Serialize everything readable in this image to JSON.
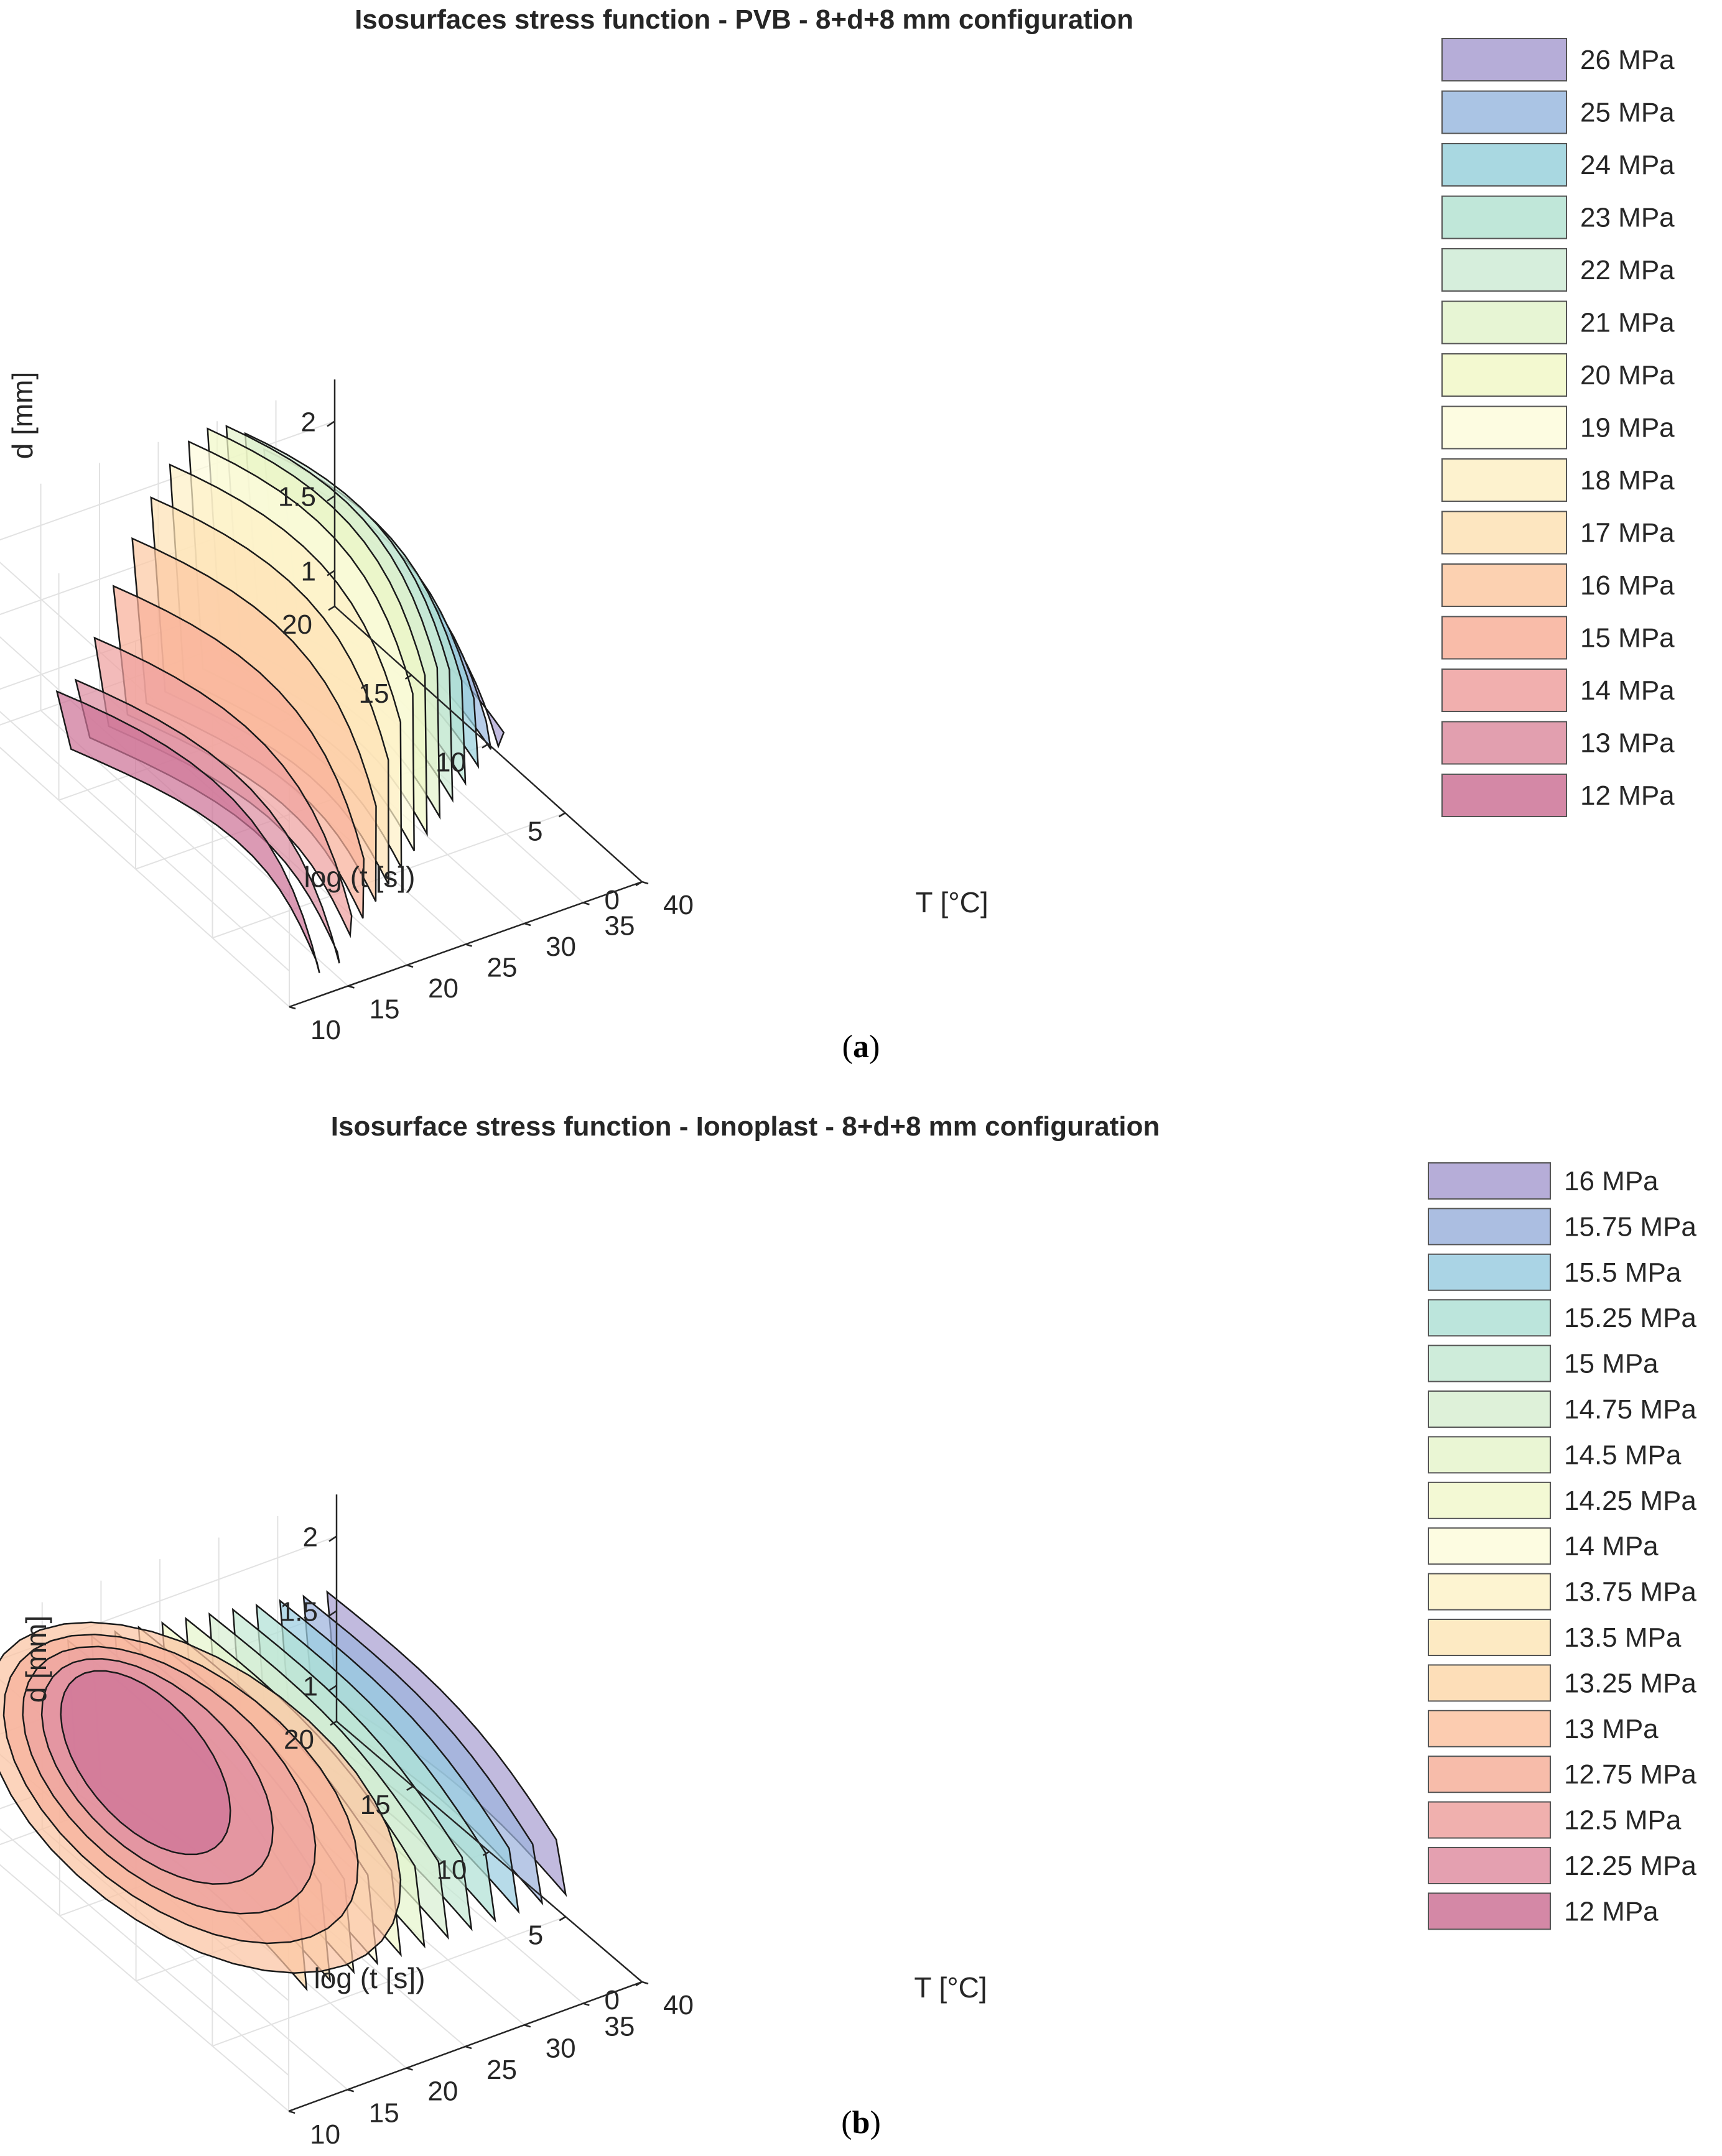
{
  "chart_data": [
    {
      "id": "a",
      "type": "isosurface-3d",
      "title": "Isosurfaces stress function - PVB - 8+d+8 mm configuration",
      "caption": "a",
      "xlabel": "T [°C]",
      "ylabel": "log (t [s])",
      "zlabel": "d [mm]",
      "x_ticks": [
        "10",
        "15",
        "20",
        "25",
        "30",
        "35",
        "40"
      ],
      "y_ticks": [
        "0",
        "5",
        "10",
        "15",
        "20"
      ],
      "z_ticks": [
        "1",
        "1.5",
        "2"
      ],
      "xlim": [
        10,
        40
      ],
      "ylim": [
        0,
        20
      ],
      "zlim": [
        0.76,
        2.28
      ],
      "legend": [
        {
          "label": "26 MPa",
          "value": 26,
          "color": "#a99fd1"
        },
        {
          "label": "25 MPa",
          "value": 25,
          "color": "#9bbadf"
        },
        {
          "label": "24 MPa",
          "value": 24,
          "color": "#9ad1dc"
        },
        {
          "label": "23 MPa",
          "value": 23,
          "color": "#b5e3d2"
        },
        {
          "label": "22 MPa",
          "value": 22,
          "color": "#cfebd6"
        },
        {
          "label": "21 MPa",
          "value": 21,
          "color": "#e3f3cc"
        },
        {
          "label": "20 MPa",
          "value": 20,
          "color": "#f1f8c8"
        },
        {
          "label": "19 MPa",
          "value": 19,
          "color": "#fdfbdc"
        },
        {
          "label": "18 MPa",
          "value": 18,
          "color": "#fdf0c6"
        },
        {
          "label": "17 MPa",
          "value": 17,
          "color": "#fde2b5"
        },
        {
          "label": "16 MPa",
          "value": 16,
          "color": "#fcc9a3"
        },
        {
          "label": "15 MPa",
          "value": 15,
          "color": "#f8b09a"
        },
        {
          "label": "14 MPa",
          "value": 14,
          "color": "#eea1a0"
        },
        {
          "label": "13 MPa",
          "value": 13,
          "color": "#dd8ea1"
        },
        {
          "label": "12 MPa",
          "value": 12,
          "color": "#cd7397"
        }
      ]
    },
    {
      "id": "b",
      "type": "isosurface-3d",
      "title": "Isosurface stress function - Ionoplast - 8+d+8 mm configuration",
      "caption": "b",
      "xlabel": "T [°C]",
      "ylabel": "log (t [s])",
      "zlabel": "d [mm]",
      "x_ticks": [
        "10",
        "15",
        "20",
        "25",
        "30",
        "35",
        "40"
      ],
      "y_ticks": [
        "0",
        "5",
        "10",
        "15",
        "20"
      ],
      "z_ticks": [
        "1",
        "1.5",
        "2"
      ],
      "xlim": [
        10,
        40
      ],
      "ylim": [
        0,
        20
      ],
      "zlim": [
        0.76,
        2.28
      ],
      "legend": [
        {
          "label": "16 MPa",
          "value": 16,
          "color": "#a99fd1"
        },
        {
          "label": "15.75 MPa",
          "value": 15.75,
          "color": "#9cb3dc"
        },
        {
          "label": "15.5 MPa",
          "value": 15.5,
          "color": "#9bcde0"
        },
        {
          "label": "15.25 MPa",
          "value": 15.25,
          "color": "#b0e0d6"
        },
        {
          "label": "15 MPa",
          "value": 15,
          "color": "#c5e9d4"
        },
        {
          "label": "14.75 MPa",
          "value": 14.75,
          "color": "#d8efd2"
        },
        {
          "label": "14.5 MPa",
          "value": 14.5,
          "color": "#e6f5cd"
        },
        {
          "label": "14.25 MPa",
          "value": 14.25,
          "color": "#f1f8cc"
        },
        {
          "label": "14 MPa",
          "value": 14,
          "color": "#fdfbdc"
        },
        {
          "label": "13.75 MPa",
          "value": 13.75,
          "color": "#fdf2c9"
        },
        {
          "label": "13.5 MPa",
          "value": 13.5,
          "color": "#fde6b8"
        },
        {
          "label": "13.25 MPa",
          "value": 13.25,
          "color": "#fdd8ab"
        },
        {
          "label": "13 MPa",
          "value": 13,
          "color": "#fbc3a2"
        },
        {
          "label": "12.75 MPa",
          "value": 12.75,
          "color": "#f6b09b"
        },
        {
          "label": "12.5 MPa",
          "value": 12.5,
          "color": "#eda2a0"
        },
        {
          "label": "12.25 MPa",
          "value": 12.25,
          "color": "#df8fa2"
        },
        {
          "label": "12 MPa",
          "value": 12,
          "color": "#cd7397"
        }
      ]
    }
  ]
}
